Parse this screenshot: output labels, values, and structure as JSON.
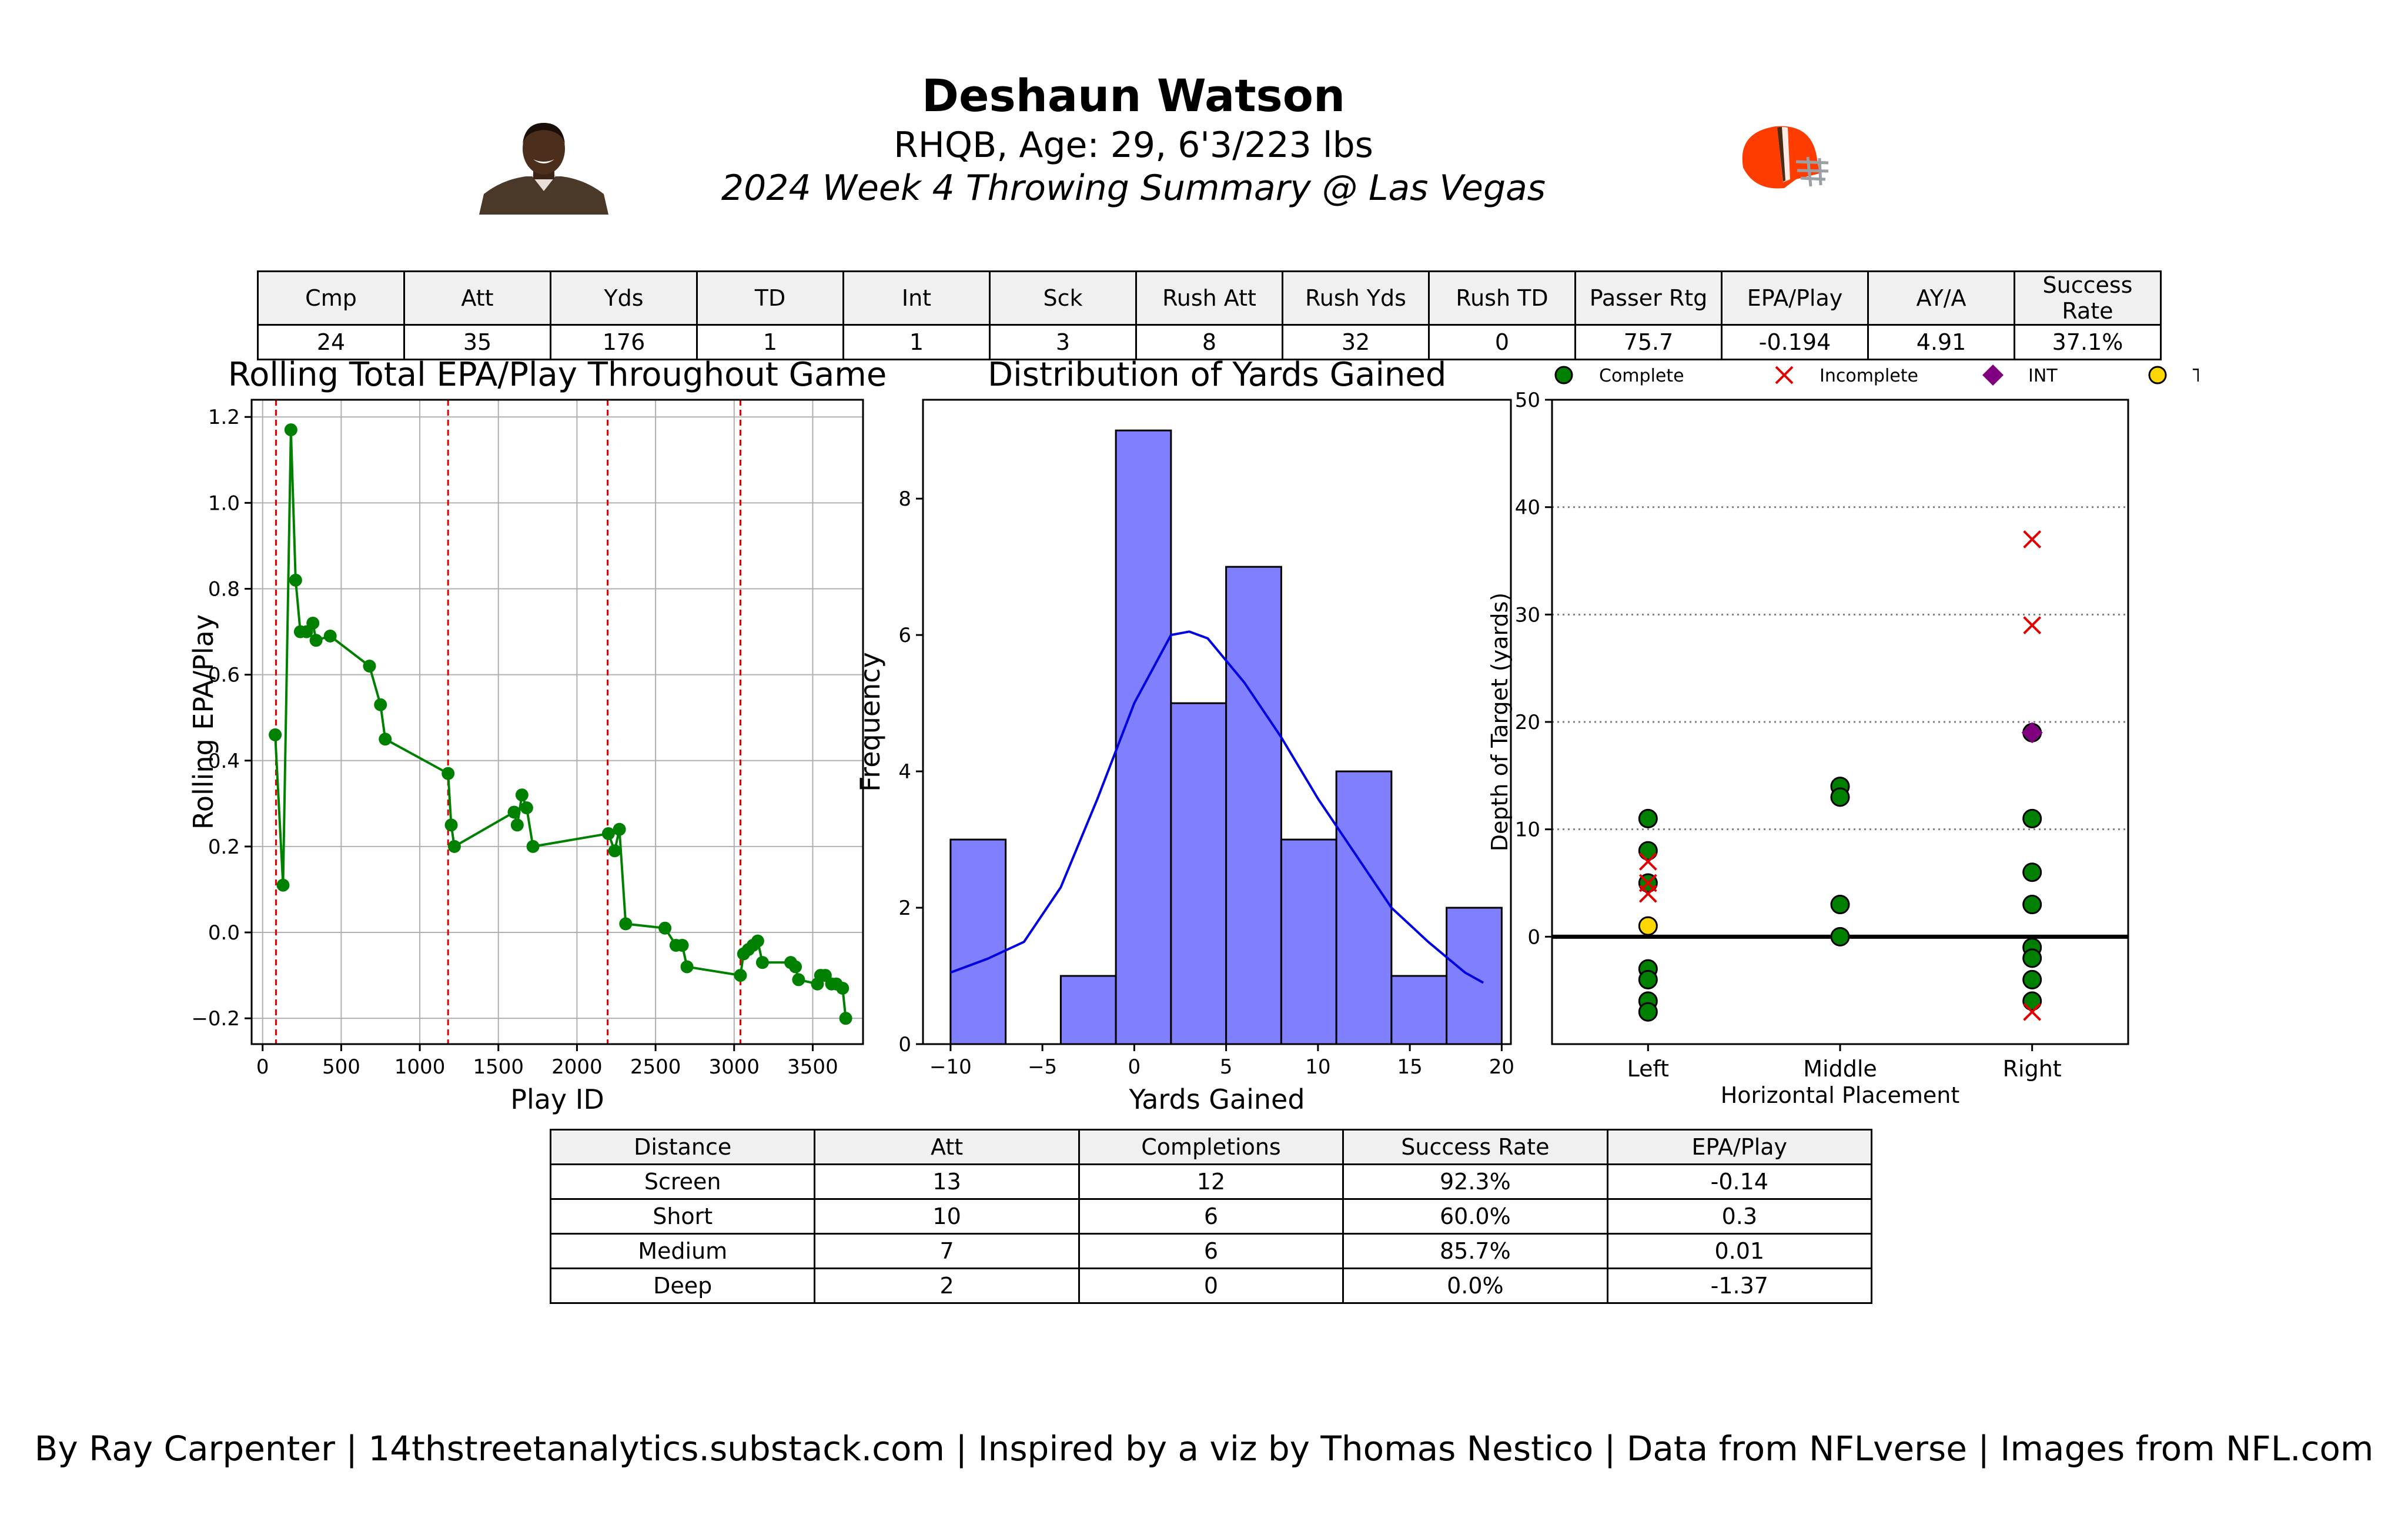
{
  "header": {
    "name": "Deshaun Watson",
    "bio": "RHQB, Age: 29, 6'3/223 lbs",
    "game": "2024 Week 4 Throwing Summary @ Las Vegas"
  },
  "stats": {
    "columns": [
      "Cmp",
      "Att",
      "Yds",
      "TD",
      "Int",
      "Sck",
      "Rush Att",
      "Rush Yds",
      "Rush TD",
      "Passer Rtg",
      "EPA/Play",
      "AY/A",
      "Success Rate"
    ],
    "values": [
      "24",
      "35",
      "176",
      "1",
      "1",
      "3",
      "8",
      "32",
      "0",
      "75.7",
      "-0.194",
      "4.91",
      "37.1%"
    ]
  },
  "distance_table": {
    "columns": [
      "Distance",
      "Att",
      "Completions",
      "Success Rate",
      "EPA/Play"
    ],
    "rows": [
      [
        "Screen",
        "13",
        "12",
        "92.3%",
        "-0.14"
      ],
      [
        "Short",
        "10",
        "6",
        "60.0%",
        "0.3"
      ],
      [
        "Medium",
        "7",
        "6",
        "85.7%",
        "0.01"
      ],
      [
        "Deep",
        "2",
        "0",
        "0.0%",
        "-1.37"
      ]
    ]
  },
  "footer": "By Ray Carpenter | 14thstreetanalytics.substack.com | Inspired by a viz by Thomas Nestico | Data from NFLverse | Images from NFL.com",
  "colors": {
    "line": "#008000",
    "quarter_lines": "#e00000",
    "hist_fill": "#8080ff",
    "kde": "#0000e0",
    "complete": "#008000",
    "incomplete": "#e00000",
    "int": "#800080",
    "td": "#ffd700",
    "helmet": "#ff3c00"
  },
  "chart_data": [
    {
      "type": "line",
      "title": "Rolling Total EPA/Play Throughout Game",
      "xlabel": "Play ID",
      "ylabel": "Rolling EPA/Play",
      "xlim": [
        -70,
        3820
      ],
      "ylim": [
        -0.26,
        1.24
      ],
      "xticks": [
        0,
        500,
        1000,
        1500,
        2000,
        2500,
        3000,
        3500
      ],
      "yticks": [
        -0.2,
        0.0,
        0.2,
        0.4,
        0.6,
        0.8,
        1.0,
        1.2
      ],
      "ytick_labels": [
        "−0.2",
        "0.0",
        "0.2",
        "0.4",
        "0.6",
        "0.8",
        "1.0",
        "1.2"
      ],
      "grid": true,
      "quarter_breaks": [
        85,
        1180,
        2195,
        3040
      ],
      "x": [
        80,
        130,
        180,
        210,
        240,
        280,
        320,
        340,
        430,
        680,
        750,
        780,
        1180,
        1200,
        1220,
        1600,
        1620,
        1650,
        1680,
        1720,
        2200,
        2240,
        2270,
        2310,
        2560,
        2630,
        2670,
        2700,
        3040,
        3060,
        3090,
        3120,
        3150,
        3180,
        3360,
        3390,
        3410,
        3530,
        3550,
        3580,
        3620,
        3650,
        3690,
        3710
      ],
      "y": [
        0.46,
        0.11,
        1.17,
        0.82,
        0.7,
        0.7,
        0.72,
        0.68,
        0.69,
        0.62,
        0.53,
        0.45,
        0.37,
        0.25,
        0.2,
        0.28,
        0.25,
        0.32,
        0.29,
        0.2,
        0.23,
        0.19,
        0.24,
        0.02,
        0.01,
        -0.03,
        -0.03,
        -0.08,
        -0.1,
        -0.05,
        -0.04,
        -0.03,
        -0.02,
        -0.07,
        -0.07,
        -0.08,
        -0.11,
        -0.12,
        -0.1,
        -0.1,
        -0.12,
        -0.12,
        -0.13,
        -0.2
      ]
    },
    {
      "type": "histogram",
      "title": "Distribution of Yards Gained",
      "xlabel": "Yards Gained",
      "ylabel": "Frequency",
      "xlim": [
        -11.5,
        20.5
      ],
      "ylim": [
        0,
        9.45
      ],
      "xticks": [
        -10,
        -5,
        0,
        5,
        10,
        15,
        20
      ],
      "xtick_labels": [
        "−10",
        "−5",
        "0",
        "5",
        "10",
        "15",
        "20"
      ],
      "yticks": [
        0,
        2,
        4,
        6,
        8
      ],
      "bin_edges": [
        -10,
        -7,
        -4,
        -1,
        2,
        5,
        8,
        11,
        14,
        17,
        20
      ],
      "counts": [
        3,
        0,
        1,
        9,
        5,
        7,
        3,
        4,
        1,
        2
      ],
      "kde": {
        "x": [
          -10,
          -8,
          -6,
          -4,
          -2,
          0,
          2,
          3,
          4,
          6,
          8,
          10,
          12,
          14,
          16,
          18,
          19
        ],
        "y": [
          1.05,
          1.25,
          1.5,
          2.3,
          3.6,
          5.0,
          6.0,
          6.05,
          5.95,
          5.3,
          4.5,
          3.6,
          2.8,
          2.0,
          1.5,
          1.05,
          0.9
        ]
      }
    },
    {
      "type": "scatter",
      "xlabel": "Horizontal Placement",
      "ylabel": "Depth of Target (yards)",
      "categories": [
        "Left",
        "Middle",
        "Right"
      ],
      "ylim": [
        -10,
        50
      ],
      "yticks": [
        0,
        10,
        20,
        30,
        40,
        50
      ],
      "legend": [
        "Complete",
        "Incomplete",
        "INT",
        "TD"
      ],
      "legend_position": "top",
      "complete": [
        {
          "x": "Left",
          "y": 11
        },
        {
          "x": "Left",
          "y": 8
        },
        {
          "x": "Left",
          "y": 5
        },
        {
          "x": "Left",
          "y": -3
        },
        {
          "x": "Left",
          "y": -4
        },
        {
          "x": "Left",
          "y": -6
        },
        {
          "x": "Left",
          "y": -7
        },
        {
          "x": "Middle",
          "y": 14
        },
        {
          "x": "Middle",
          "y": 13
        },
        {
          "x": "Middle",
          "y": 3
        },
        {
          "x": "Middle",
          "y": 0
        },
        {
          "x": "Right",
          "y": 19
        },
        {
          "x": "Right",
          "y": 11
        },
        {
          "x": "Right",
          "y": 6
        },
        {
          "x": "Right",
          "y": 3
        },
        {
          "x": "Right",
          "y": -1
        },
        {
          "x": "Right",
          "y": -2
        },
        {
          "x": "Right",
          "y": -4
        },
        {
          "x": "Right",
          "y": -6
        }
      ],
      "incomplete": [
        {
          "x": "Left",
          "y": 7
        },
        {
          "x": "Left",
          "y": 5
        },
        {
          "x": "Left",
          "y": 4
        },
        {
          "x": "Right",
          "y": 37
        },
        {
          "x": "Right",
          "y": 29
        },
        {
          "x": "Right",
          "y": -7
        }
      ],
      "int": [
        {
          "x": "Right",
          "y": 19
        }
      ],
      "td": [
        {
          "x": "Left",
          "y": 1
        }
      ]
    }
  ]
}
